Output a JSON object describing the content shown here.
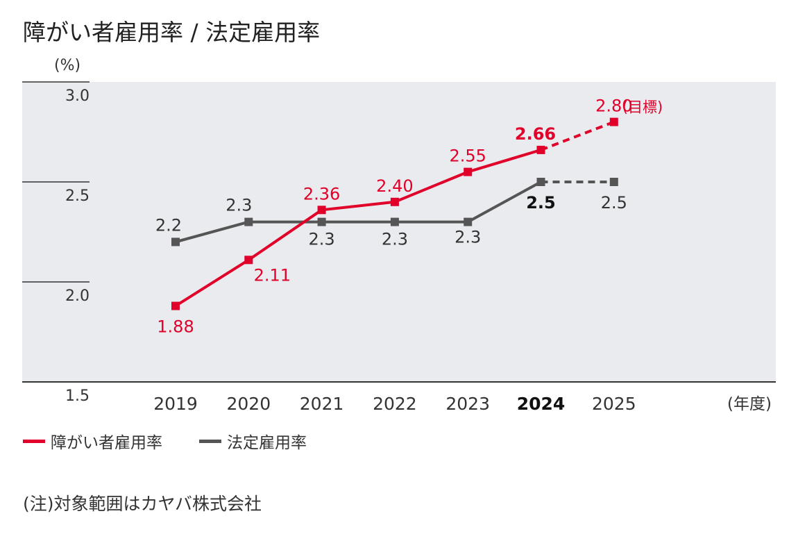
{
  "title": "障がい者雇用率 / 法定雇用率",
  "note": "(注)対象範囲はカヤバ株式会社",
  "chart_data": {
    "type": "line",
    "y_unit": "(%)",
    "x_unit": "(年度)",
    "ylim": [
      1.5,
      3.0
    ],
    "yticks": [
      "3.0",
      "2.5",
      "2.0",
      "1.5"
    ],
    "categories": [
      "2019",
      "2020",
      "2021",
      "2022",
      "2023",
      "2024",
      "2025"
    ],
    "highlight_category": "2024",
    "grid": false,
    "series": [
      {
        "name": "障がい者雇用率",
        "color": "#e0002a",
        "values": [
          1.88,
          2.11,
          2.36,
          2.4,
          2.55,
          2.66,
          2.8
        ],
        "labels": [
          "1.88",
          "2.11",
          "2.36",
          "2.40",
          "2.55",
          "2.66",
          "2.80"
        ],
        "projected_from_index": 5,
        "annotation": "(目標)"
      },
      {
        "name": "法定雇用率",
        "color": "#555555",
        "values": [
          2.2,
          2.3,
          2.3,
          2.3,
          2.3,
          2.5,
          2.5
        ],
        "labels": [
          "2.2",
          "2.3",
          "2.3",
          "2.3",
          "2.3",
          "2.5",
          "2.5"
        ],
        "projected_from_index": 5
      }
    ]
  }
}
